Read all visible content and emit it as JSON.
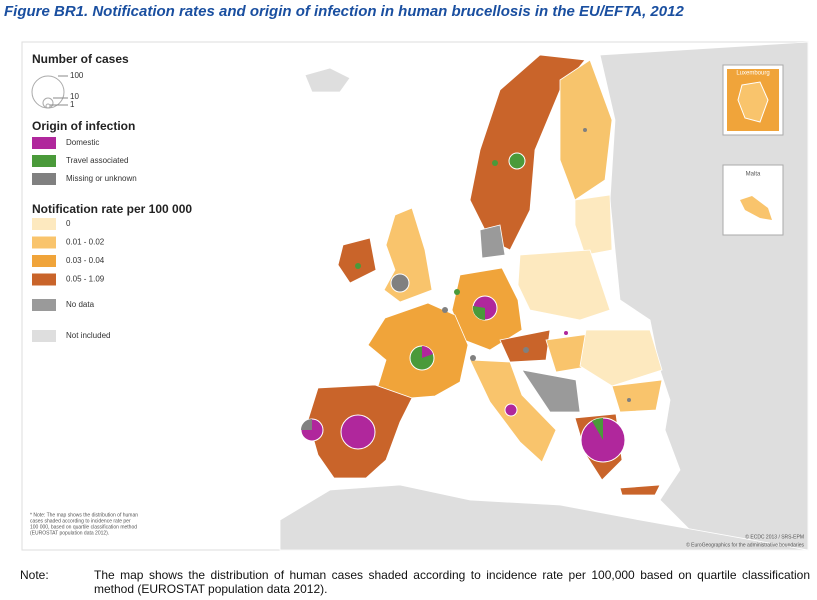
{
  "title": "Figure BR1.  Notification rates and origin of infection in human brucellosis in the EU/EFTA, 2012",
  "legend": {
    "size_title": "Number of cases",
    "size_labels": [
      "100",
      "10",
      "1"
    ],
    "origin_title": "Origin of infection",
    "origin": [
      {
        "label": "Domestic",
        "color": "#b0279c"
      },
      {
        "label": "Travel associated",
        "color": "#4a9a3a"
      },
      {
        "label": "Missing or unknown",
        "color": "#808080"
      }
    ],
    "rate_title": "Notification rate per 100 000",
    "rates": [
      {
        "label": "0",
        "color": "#fde9bf"
      },
      {
        "label": "0.01 - 0.02",
        "color": "#f9c46c"
      },
      {
        "label": "0.03 - 0.04",
        "color": "#f0a43a"
      },
      {
        "label": "0.05 - 1.09",
        "color": "#c9642a"
      }
    ],
    "no_data": "No data",
    "not_included": "Not included"
  },
  "insets": [
    "Luxembourg",
    "Malta"
  ],
  "map_note": [
    "* Note: The map shows the distribution of human",
    "cases shaded according to incidence rate per",
    "100 000, based on quartile classification method",
    "(EUROSTAT population data 2012)."
  ],
  "credits": [
    "© ECDC 2013 / SRS-EPM",
    "© EuroGeographics for the administrative boundaries"
  ],
  "note_label": "Note:",
  "note_text": "The map shows the distribution of human cases shaded according to incidence rate per 100,000 based on quartile classification method (EUROSTAT population data 2012)."
}
